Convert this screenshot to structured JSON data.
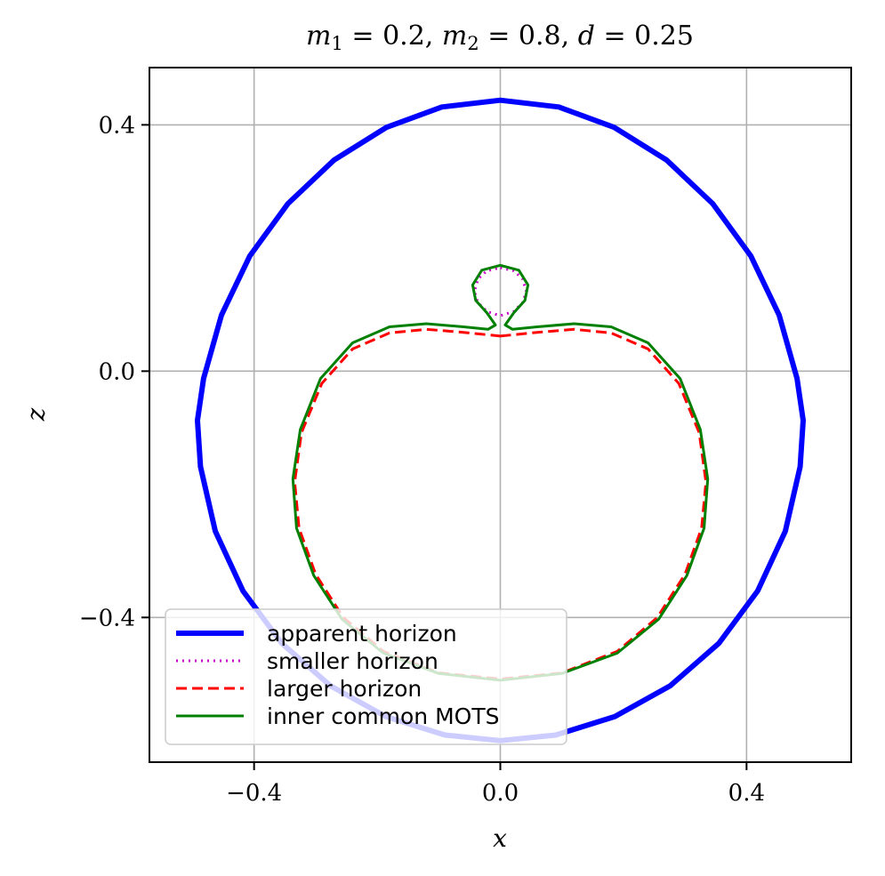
{
  "chart_data": {
    "type": "line",
    "title": "m_1 = 0.2, m_2 = 0.8, d = 0.25",
    "title_parts": [
      "m",
      "1",
      " = 0.2, ",
      "m",
      "2",
      " = 0.8, ",
      "d",
      " = 0.25"
    ],
    "xlabel": "x",
    "ylabel": "z",
    "xlim": [
      -0.57,
      0.57
    ],
    "ylim": [
      -0.635,
      0.493
    ],
    "xticks": [
      {
        "value": -0.4,
        "label": "−0.4"
      },
      {
        "value": 0.0,
        "label": "0.0"
      },
      {
        "value": 0.4,
        "label": "0.4"
      }
    ],
    "yticks": [
      {
        "value": 0.4,
        "label": "0.4"
      },
      {
        "value": 0.0,
        "label": "0.0"
      },
      {
        "value": -0.4,
        "label": "−0.4"
      }
    ],
    "grid": true,
    "legend_position": "lower-left",
    "series": [
      {
        "name": "apparent horizon",
        "color": "#0000ff",
        "style": "solid",
        "points": [
          [
            0.0,
            0.44
          ],
          [
            0.095,
            0.429
          ],
          [
            0.185,
            0.396
          ],
          [
            0.27,
            0.343
          ],
          [
            0.345,
            0.272
          ],
          [
            0.407,
            0.187
          ],
          [
            0.453,
            0.091
          ],
          [
            0.482,
            -0.012
          ],
          [
            0.492,
            -0.08
          ],
          [
            0.487,
            -0.155
          ],
          [
            0.463,
            -0.26
          ],
          [
            0.418,
            -0.357
          ],
          [
            0.355,
            -0.442
          ],
          [
            0.276,
            -0.511
          ],
          [
            0.186,
            -0.561
          ],
          [
            0.09,
            -0.591
          ],
          [
            0.0,
            -0.6
          ],
          [
            -0.09,
            -0.591
          ],
          [
            -0.186,
            -0.561
          ],
          [
            -0.276,
            -0.511
          ],
          [
            -0.355,
            -0.442
          ],
          [
            -0.418,
            -0.357
          ],
          [
            -0.463,
            -0.26
          ],
          [
            -0.487,
            -0.155
          ],
          [
            -0.492,
            -0.08
          ],
          [
            -0.482,
            -0.012
          ],
          [
            -0.453,
            0.091
          ],
          [
            -0.407,
            0.187
          ],
          [
            -0.345,
            0.272
          ],
          [
            -0.27,
            0.343
          ],
          [
            -0.185,
            0.396
          ],
          [
            -0.095,
            0.429
          ],
          [
            0.0,
            0.44
          ]
        ]
      },
      {
        "name": "smaller horizon",
        "color": "#cc00cc",
        "style": "dotted",
        "points": [
          [
            0.0,
            0.168
          ],
          [
            0.022,
            0.163
          ],
          [
            0.036,
            0.15
          ],
          [
            0.042,
            0.13
          ],
          [
            0.037,
            0.112
          ],
          [
            0.022,
            0.097
          ],
          [
            0.0,
            0.09
          ],
          [
            -0.022,
            0.097
          ],
          [
            -0.037,
            0.112
          ],
          [
            -0.042,
            0.13
          ],
          [
            -0.036,
            0.15
          ],
          [
            -0.022,
            0.163
          ],
          [
            0.0,
            0.168
          ]
        ]
      },
      {
        "name": "larger horizon",
        "color": "#ff0000",
        "style": "dashed",
        "points": [
          [
            0.0,
            0.057
          ],
          [
            0.06,
            0.063
          ],
          [
            0.12,
            0.068
          ],
          [
            0.18,
            0.062
          ],
          [
            0.24,
            0.036
          ],
          [
            0.29,
            -0.02
          ],
          [
            0.323,
            -0.1
          ],
          [
            0.334,
            -0.18
          ],
          [
            0.327,
            -0.255
          ],
          [
            0.3,
            -0.33
          ],
          [
            0.255,
            -0.4
          ],
          [
            0.19,
            -0.455
          ],
          [
            0.1,
            -0.49
          ],
          [
            0.0,
            -0.5
          ],
          [
            -0.1,
            -0.49
          ],
          [
            -0.19,
            -0.455
          ],
          [
            -0.255,
            -0.4
          ],
          [
            -0.3,
            -0.33
          ],
          [
            -0.327,
            -0.255
          ],
          [
            -0.334,
            -0.18
          ],
          [
            -0.323,
            -0.1
          ],
          [
            -0.29,
            -0.02
          ],
          [
            -0.24,
            0.036
          ],
          [
            -0.18,
            0.062
          ],
          [
            -0.12,
            0.068
          ],
          [
            -0.06,
            0.063
          ],
          [
            0.0,
            0.057
          ]
        ]
      },
      {
        "name": "inner common MOTS",
        "color": "#008000",
        "style": "solid",
        "points": [
          [
            0.0,
            0.172
          ],
          [
            0.03,
            0.164
          ],
          [
            0.045,
            0.14
          ],
          [
            0.04,
            0.115
          ],
          [
            0.022,
            0.095
          ],
          [
            0.008,
            0.075
          ],
          [
            0.02,
            0.068
          ],
          [
            0.06,
            0.072
          ],
          [
            0.12,
            0.077
          ],
          [
            0.18,
            0.072
          ],
          [
            0.24,
            0.046
          ],
          [
            0.292,
            -0.012
          ],
          [
            0.325,
            -0.095
          ],
          [
            0.337,
            -0.175
          ],
          [
            0.331,
            -0.255
          ],
          [
            0.303,
            -0.332
          ],
          [
            0.257,
            -0.403
          ],
          [
            0.19,
            -0.458
          ],
          [
            0.1,
            -0.491
          ],
          [
            0.0,
            -0.502
          ],
          [
            -0.1,
            -0.491
          ],
          [
            -0.19,
            -0.458
          ],
          [
            -0.257,
            -0.403
          ],
          [
            -0.303,
            -0.332
          ],
          [
            -0.331,
            -0.255
          ],
          [
            -0.337,
            -0.175
          ],
          [
            -0.325,
            -0.095
          ],
          [
            -0.292,
            -0.012
          ],
          [
            -0.24,
            0.046
          ],
          [
            -0.18,
            0.072
          ],
          [
            -0.12,
            0.077
          ],
          [
            -0.06,
            0.072
          ],
          [
            -0.02,
            0.068
          ],
          [
            -0.008,
            0.075
          ],
          [
            -0.022,
            0.095
          ],
          [
            -0.04,
            0.115
          ],
          [
            -0.045,
            0.14
          ],
          [
            -0.03,
            0.164
          ],
          [
            0.0,
            0.172
          ]
        ]
      }
    ]
  }
}
